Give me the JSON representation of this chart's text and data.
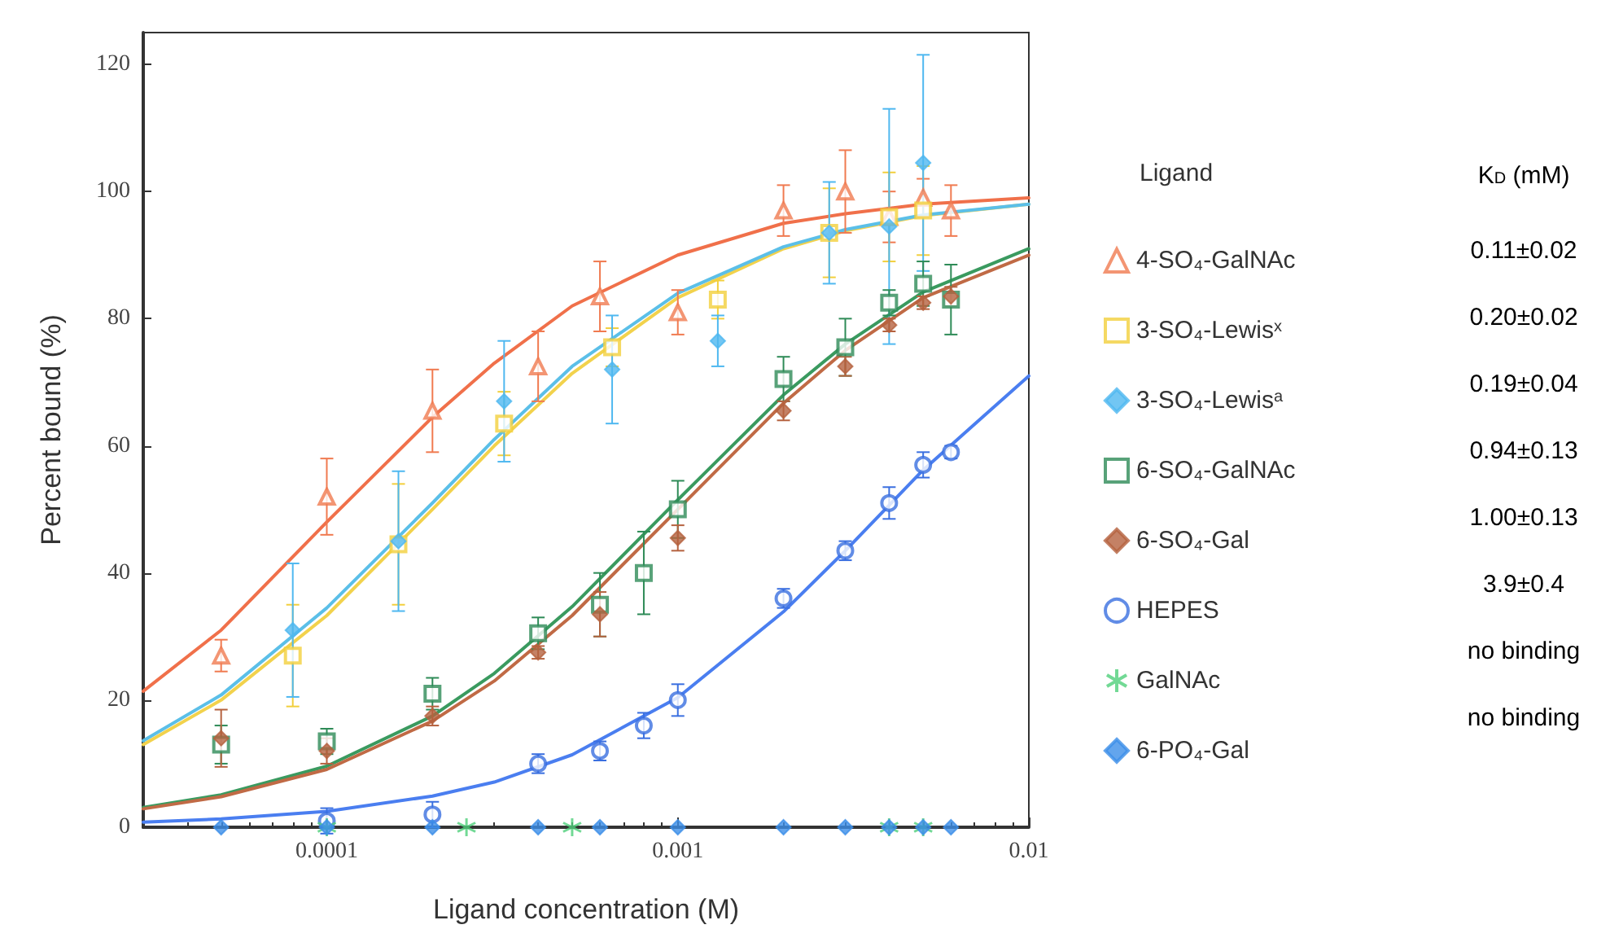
{
  "chart_data": {
    "type": "scatter",
    "xlabel": "Ligand concentration (M)",
    "ylabel": "Percent bound (%)",
    "legend_title": "Ligand",
    "log": "x",
    "grid": false,
    "legend": "right",
    "xlim": [
      3e-05,
      0.01
    ],
    "xticks": [
      0.0001,
      0.001,
      0.01
    ],
    "ylim": [
      0,
      125
    ],
    "yticks": [
      0,
      20,
      40,
      60,
      80,
      100,
      120
    ],
    "annotations": [
      "K$_{D}$ (mM)",
      "0.11±0.02",
      "0.20±0.02",
      "0.19±0.04",
      "0.94±0.13",
      "1.00±0.13",
      "3.9±0.4",
      "no binding",
      "no binding"
    ],
    "series": [
      {
        "name": "4-SO₄-GalNAc",
        "marker": "triangle",
        "color": "#f07a50",
        "x": [
          5e-05,
          0.0001,
          0.0002,
          0.0004,
          0.0006,
          0.001,
          0.002,
          0.003,
          0.004,
          0.005,
          0.006
        ],
        "values": [
          27,
          52,
          65.5,
          72.5,
          83.5,
          81,
          97,
          100,
          96,
          99,
          97
        ],
        "errors": [
          2.5,
          6,
          6.5,
          5.5,
          5.5,
          3.5,
          4,
          6.5,
          4,
          3,
          4
        ]
      },
      {
        "name": "3-SO₄-Lewis$^{x}$",
        "marker": "square",
        "color": "#f2cf3c",
        "x": [
          8e-05,
          0.00016,
          0.00032,
          0.00065,
          0.0013,
          0.0027,
          0.004,
          0.005
        ],
        "values": [
          27,
          44.5,
          63.5,
          75.5,
          83,
          93.5,
          96,
          97
        ],
        "errors": [
          8,
          9.5,
          5,
          3,
          3,
          7,
          7,
          7
        ]
      },
      {
        "name": "3-SO₄-Lewis$^{a}$",
        "marker": "diamond",
        "color": "#4fb8f0",
        "x": [
          8e-05,
          0.00016,
          0.00032,
          0.00065,
          0.0013,
          0.0027,
          0.004,
          0.005
        ],
        "values": [
          31,
          45,
          67,
          72,
          76.5,
          93.5,
          94.5,
          104.5
        ],
        "errors": [
          10.5,
          11,
          9.5,
          8.5,
          4,
          8,
          18.5,
          17
        ]
      },
      {
        "name": "6-SO₄-GalNAc",
        "marker": "square",
        "color": "#2e8b57",
        "x": [
          5e-05,
          0.0001,
          0.0002,
          0.0004,
          0.0006,
          0.0008,
          0.001,
          0.002,
          0.003,
          0.004,
          0.005,
          0.006
        ],
        "values": [
          13,
          13.5,
          21,
          30.5,
          35,
          40,
          50,
          70.5,
          75.5,
          82.5,
          85.5,
          83
        ],
        "errors": [
          3,
          2,
          2.5,
          2.5,
          5,
          6.5,
          4.5,
          3.5,
          4.5,
          2,
          3.5,
          5.5
        ]
      },
      {
        "name": "6-SO₄-Gal",
        "marker": "diamond",
        "color": "#b5623f",
        "x": [
          5e-05,
          0.0001,
          0.0002,
          0.0004,
          0.0006,
          0.001,
          0.002,
          0.003,
          0.004,
          0.005,
          0.006
        ],
        "values": [
          14,
          12,
          17.5,
          27.5,
          33.5,
          45.5,
          65.5,
          72.5,
          79,
          82.5,
          83.5
        ],
        "errors": [
          4.5,
          2,
          1.5,
          1,
          3.5,
          2,
          1.5,
          1.5,
          1,
          1,
          1.5
        ]
      },
      {
        "name": "HEPES",
        "marker": "circle",
        "color": "#3a6fe0",
        "x": [
          0.0001,
          0.0002,
          0.0004,
          0.0006,
          0.0008,
          0.001,
          0.002,
          0.003,
          0.004,
          0.005,
          0.006
        ],
        "values": [
          1,
          2,
          10,
          12,
          16,
          20,
          36,
          43.5,
          51,
          57,
          59
        ],
        "errors": [
          2,
          2,
          1.5,
          1.5,
          2,
          2.5,
          1.5,
          1.5,
          2.5,
          2,
          1
        ]
      },
      {
        "name": "GalNAc",
        "marker": "cross",
        "color": "#4fd07a",
        "x": [
          0.0001,
          0.00025,
          0.0005,
          0.004,
          0.005
        ],
        "values": [
          0,
          0,
          0,
          0,
          0
        ]
      },
      {
        "name": "6-PO₄-Gal",
        "marker": "diamond",
        "color": "#3c8ee8",
        "x": [
          5e-05,
          0.0001,
          0.0002,
          0.0004,
          0.0006,
          0.001,
          0.002,
          0.003,
          0.004,
          0.005,
          0.006
        ],
        "values": [
          0,
          0,
          0,
          0,
          0,
          0,
          0,
          0,
          0,
          0,
          0
        ]
      },
      {
        "type": "line",
        "marker": "none",
        "color": "#f0704a",
        "x": [
          3e-05,
          5e-05,
          0.0001,
          0.0002,
          0.0003,
          0.0005,
          0.001,
          0.002,
          0.003,
          0.005,
          0.01
        ],
        "values": [
          21.4,
          31,
          48,
          64.5,
          73,
          82,
          90,
          95,
          96.5,
          98,
          99
        ]
      },
      {
        "type": "line",
        "marker": "none",
        "color": "#f2d24c",
        "x": [
          3e-05,
          5e-05,
          0.0001,
          0.0002,
          0.0003,
          0.0005,
          0.001,
          0.002,
          0.003,
          0.005,
          0.01
        ],
        "values": [
          13,
          20,
          33.3,
          50,
          60,
          71.4,
          83.3,
          91,
          93.8,
          96.2,
          98
        ]
      },
      {
        "type": "line",
        "marker": "none",
        "color": "#5bbfe8",
        "x": [
          3e-05,
          5e-05,
          0.0001,
          0.0002,
          0.0003,
          0.0005,
          0.001,
          0.002,
          0.003,
          0.005,
          0.01
        ],
        "values": [
          13.6,
          20.8,
          34.5,
          51,
          61,
          72.5,
          84,
          91.3,
          94,
          96.3,
          98
        ]
      },
      {
        "type": "line",
        "marker": "none",
        "color": "#3a9a5f",
        "x": [
          3e-05,
          5e-05,
          0.0001,
          0.0002,
          0.0003,
          0.0005,
          0.001,
          0.002,
          0.003,
          0.005,
          0.01
        ],
        "values": [
          3.1,
          5.1,
          9.6,
          17.5,
          24.2,
          34.7,
          51.5,
          68,
          76,
          84.2,
          91
        ]
      },
      {
        "type": "line",
        "marker": "none",
        "color": "#c06a45",
        "x": [
          3e-05,
          5e-05,
          0.0001,
          0.0002,
          0.0003,
          0.0005,
          0.001,
          0.002,
          0.003,
          0.005,
          0.01
        ],
        "values": [
          2.9,
          4.8,
          9.1,
          16.7,
          23,
          33.3,
          50,
          66.7,
          75,
          83.3,
          90
        ]
      },
      {
        "type": "line",
        "marker": "none",
        "color": "#4a7ef0",
        "x": [
          3e-05,
          5e-05,
          0.0001,
          0.0002,
          0.0003,
          0.0005,
          0.001,
          0.002,
          0.003,
          0.005,
          0.01
        ],
        "values": [
          0.8,
          1.3,
          2.5,
          4.9,
          7.1,
          11.4,
          20.4,
          33.9,
          43.5,
          56.2,
          71
        ]
      }
    ]
  }
}
